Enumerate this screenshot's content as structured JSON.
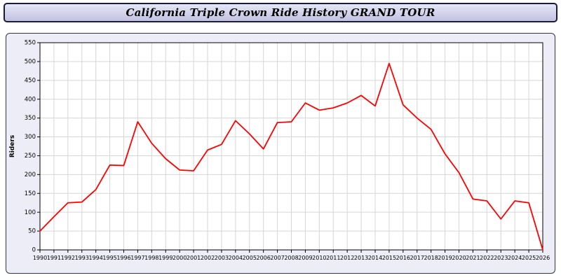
{
  "window": {
    "title": "California Triple Crown Ride History GRAND TOUR"
  },
  "chart_data": {
    "type": "line",
    "title": "California Triple Crown Ride History GRAND TOUR",
    "xlabel": "",
    "ylabel": "Riders",
    "ylim": [
      0,
      550
    ],
    "ytick_step": 50,
    "grid": true,
    "legend_position": "none",
    "line_color": "#ff0000",
    "plot_bg": "#ffffff",
    "grid_color": "#d6d6d6",
    "x": [
      1990,
      1991,
      1992,
      1993,
      1994,
      1995,
      1996,
      1997,
      1998,
      1999,
      2000,
      2001,
      2002,
      2003,
      2004,
      2005,
      2006,
      2007,
      2008,
      2009,
      2010,
      2011,
      2012,
      2013,
      2014,
      2015,
      2016,
      2017,
      2018,
      2019,
      2020,
      2021,
      2022,
      2023,
      2024,
      2025,
      2026
    ],
    "series": [
      {
        "name": "Riders",
        "color": "#ff0000",
        "values": [
          50,
          88,
          125,
          127,
          160,
          225,
          224,
          340,
          283,
          242,
          212,
          210,
          265,
          280,
          343,
          308,
          268,
          338,
          340,
          390,
          371,
          377,
          390,
          410,
          382,
          495,
          385,
          350,
          320,
          255,
          205,
          135,
          130,
          82,
          130,
          125,
          0
        ]
      }
    ]
  }
}
